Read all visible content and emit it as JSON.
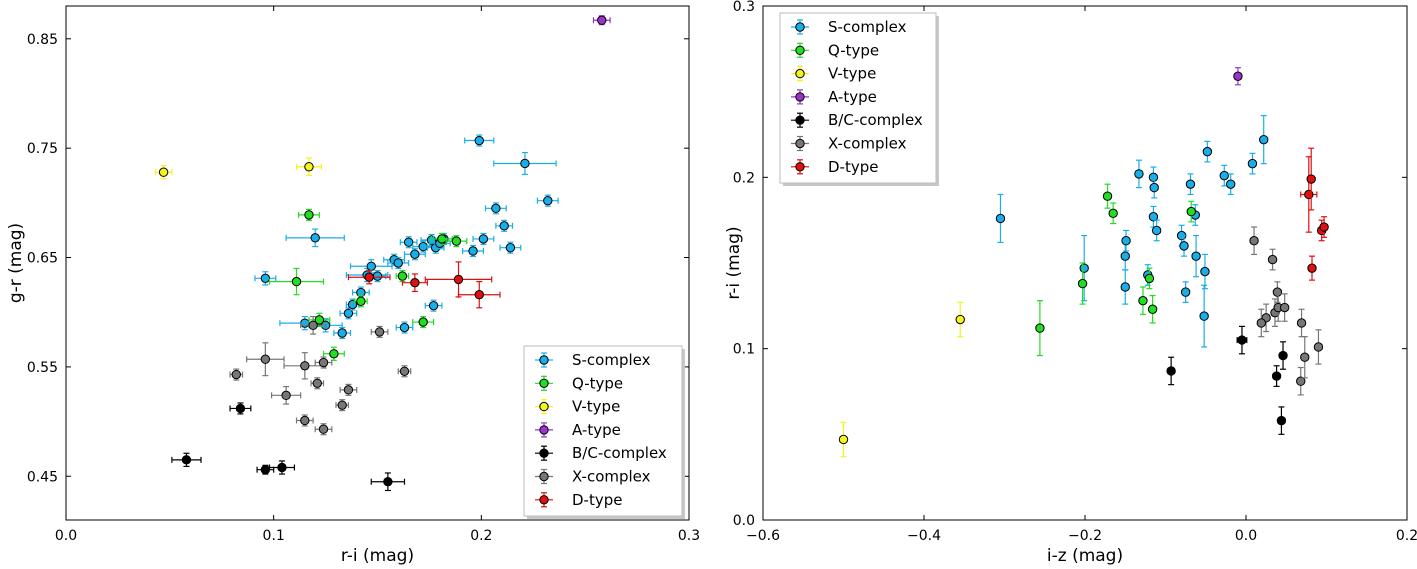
{
  "chart_data": [
    {
      "type": "scatter",
      "xlabel": "r-i (mag)",
      "ylabel": "g-r (mag)",
      "xlim": [
        0.0,
        0.3
      ],
      "ylim": [
        0.41,
        0.88
      ],
      "xticks": [
        "0.0",
        "0.1",
        "0.2",
        "0.3"
      ],
      "xtick_values": [
        0.0,
        0.1,
        0.2,
        0.3
      ],
      "yticks": [
        "0.45",
        "0.55",
        "0.65",
        "0.75",
        "0.85"
      ],
      "ytick_values": [
        0.45,
        0.55,
        0.65,
        0.75,
        0.85
      ],
      "legend_position": "bottom-right",
      "series": [
        {
          "name": "S-complex",
          "color": "#1aaee8",
          "points": [
            [
              0.096,
              0.631,
              0.005,
              0.006
            ],
            [
              0.12,
              0.668,
              0.014,
              0.008
            ],
            [
              0.115,
              0.59,
              0.012,
              0.006
            ],
            [
              0.125,
              0.588,
              0.008,
              0.006
            ],
            [
              0.133,
              0.581,
              0.004,
              0.005
            ],
            [
              0.136,
              0.599,
              0.004,
              0.005
            ],
            [
              0.138,
              0.607,
              0.003,
              0.005
            ],
            [
              0.142,
              0.618,
              0.004,
              0.005
            ],
            [
              0.145,
              0.634,
              0.01,
              0.006
            ],
            [
              0.147,
              0.642,
              0.01,
              0.006
            ],
            [
              0.15,
              0.633,
              0.004,
              0.005
            ],
            [
              0.158,
              0.648,
              0.005,
              0.005
            ],
            [
              0.16,
              0.645,
              0.005,
              0.005
            ],
            [
              0.163,
              0.586,
              0.004,
              0.005
            ],
            [
              0.165,
              0.664,
              0.004,
              0.005
            ],
            [
              0.168,
              0.653,
              0.005,
              0.005
            ],
            [
              0.172,
              0.66,
              0.005,
              0.005
            ],
            [
              0.176,
              0.666,
              0.005,
              0.005
            ],
            [
              0.178,
              0.659,
              0.004,
              0.005
            ],
            [
              0.18,
              0.663,
              0.005,
              0.005
            ],
            [
              0.177,
              0.606,
              0.004,
              0.005
            ],
            [
              0.182,
              0.667,
              0.005,
              0.005
            ],
            [
              0.196,
              0.656,
              0.005,
              0.005
            ],
            [
              0.201,
              0.667,
              0.005,
              0.005
            ],
            [
              0.199,
              0.757,
              0.007,
              0.005
            ],
            [
              0.207,
              0.695,
              0.005,
              0.005
            ],
            [
              0.211,
              0.679,
              0.004,
              0.005
            ],
            [
              0.214,
              0.659,
              0.005,
              0.005
            ],
            [
              0.221,
              0.736,
              0.015,
              0.01
            ],
            [
              0.232,
              0.702,
              0.005,
              0.005
            ]
          ]
        },
        {
          "name": "Q-type",
          "color": "#22dd22",
          "points": [
            [
              0.111,
              0.628,
              0.013,
              0.012
            ],
            [
              0.117,
              0.689,
              0.005,
              0.005
            ],
            [
              0.122,
              0.593,
              0.005,
              0.006
            ],
            [
              0.129,
              0.562,
              0.005,
              0.006
            ],
            [
              0.142,
              0.61,
              0.003,
              0.005
            ],
            [
              0.162,
              0.633,
              0.003,
              0.005
            ],
            [
              0.172,
              0.591,
              0.005,
              0.005
            ],
            [
              0.181,
              0.667,
              0.005,
              0.005
            ],
            [
              0.188,
              0.665,
              0.005,
              0.005
            ]
          ]
        },
        {
          "name": "V-type",
          "color": "#f4f41e",
          "points": [
            [
              0.047,
              0.728,
              0.004,
              0.006
            ],
            [
              0.117,
              0.733,
              0.006,
              0.008
            ]
          ]
        },
        {
          "name": "A-type",
          "color": "#9933cc",
          "points": [
            [
              0.258,
              0.867,
              0.004,
              0.004
            ]
          ]
        },
        {
          "name": "B/C-complex",
          "color": "#000000",
          "points": [
            [
              0.058,
              0.465,
              0.007,
              0.006
            ],
            [
              0.084,
              0.512,
              0.005,
              0.005
            ],
            [
              0.096,
              0.456,
              0.004,
              0.004
            ],
            [
              0.104,
              0.458,
              0.006,
              0.006
            ],
            [
              0.155,
              0.445,
              0.008,
              0.008
            ]
          ]
        },
        {
          "name": "X-complex",
          "color": "#777777",
          "points": [
            [
              0.082,
              0.543,
              0.003,
              0.005
            ],
            [
              0.096,
              0.557,
              0.009,
              0.015
            ],
            [
              0.106,
              0.524,
              0.007,
              0.008
            ],
            [
              0.115,
              0.501,
              0.004,
              0.005
            ],
            [
              0.115,
              0.551,
              0.01,
              0.012
            ],
            [
              0.119,
              0.588,
              0.006,
              0.008
            ],
            [
              0.121,
              0.535,
              0.003,
              0.005
            ],
            [
              0.124,
              0.554,
              0.004,
              0.005
            ],
            [
              0.124,
              0.493,
              0.004,
              0.005
            ],
            [
              0.133,
              0.515,
              0.003,
              0.005
            ],
            [
              0.136,
              0.529,
              0.004,
              0.005
            ],
            [
              0.151,
              0.582,
              0.004,
              0.005
            ],
            [
              0.163,
              0.546,
              0.003,
              0.005
            ]
          ]
        },
        {
          "name": "D-type",
          "color": "#dd1111",
          "points": [
            [
              0.146,
              0.632,
              0.01,
              0.006
            ],
            [
              0.168,
              0.627,
              0.006,
              0.008
            ],
            [
              0.189,
              0.63,
              0.016,
              0.016
            ],
            [
              0.199,
              0.616,
              0.01,
              0.012
            ]
          ]
        }
      ]
    },
    {
      "type": "scatter",
      "xlabel": "i-z (mag)",
      "ylabel": "r-i (mag)",
      "xlim": [
        -0.6,
        0.2
      ],
      "ylim": [
        0.0,
        0.3
      ],
      "xticks": [
        "−0.6",
        "−0.4",
        "−0.2",
        "0.0",
        "0.2"
      ],
      "xtick_values": [
        -0.6,
        -0.4,
        -0.2,
        0.0,
        0.2
      ],
      "yticks": [
        "0.0",
        "0.1",
        "0.2",
        "0.3"
      ],
      "ytick_values": [
        0.0,
        0.1,
        0.2,
        0.3
      ],
      "legend_position": "top-left",
      "series": [
        {
          "name": "S-complex",
          "color": "#1aaee8",
          "points": [
            [
              -0.305,
              0.176,
              0.004,
              0.014
            ],
            [
              -0.201,
              0.147,
              0.004,
              0.019
            ],
            [
              -0.15,
              0.136,
              0.004,
              0.01
            ],
            [
              -0.15,
              0.154,
              0.004,
              0.008
            ],
            [
              -0.149,
              0.163,
              0.004,
              0.006
            ],
            [
              -0.133,
              0.202,
              0.004,
              0.008
            ],
            [
              -0.122,
              0.143,
              0.004,
              0.006
            ],
            [
              -0.115,
              0.2,
              0.004,
              0.006
            ],
            [
              -0.114,
              0.194,
              0.004,
              0.006
            ],
            [
              -0.115,
              0.177,
              0.004,
              0.006
            ],
            [
              -0.111,
              0.169,
              0.004,
              0.006
            ],
            [
              -0.08,
              0.166,
              0.004,
              0.006
            ],
            [
              -0.077,
              0.16,
              0.004,
              0.006
            ],
            [
              -0.075,
              0.133,
              0.004,
              0.006
            ],
            [
              -0.069,
              0.196,
              0.004,
              0.006
            ],
            [
              -0.062,
              0.154,
              0.004,
              0.012
            ],
            [
              -0.063,
              0.178,
              0.004,
              0.006
            ],
            [
              -0.051,
              0.145,
              0.004,
              0.01
            ],
            [
              -0.048,
              0.215,
              0.004,
              0.006
            ],
            [
              -0.052,
              0.119,
              0.004,
              0.018
            ],
            [
              -0.027,
              0.201,
              0.004,
              0.006
            ],
            [
              -0.019,
              0.196,
              0.004,
              0.006
            ],
            [
              0.008,
              0.208,
              0.004,
              0.006
            ],
            [
              0.022,
              0.222,
              0.004,
              0.014
            ]
          ]
        },
        {
          "name": "Q-type",
          "color": "#22dd22",
          "points": [
            [
              -0.256,
              0.112,
              0.004,
              0.016
            ],
            [
              -0.203,
              0.138,
              0.004,
              0.012
            ],
            [
              -0.172,
              0.189,
              0.004,
              0.007
            ],
            [
              -0.165,
              0.179,
              0.004,
              0.006
            ],
            [
              -0.128,
              0.128,
              0.004,
              0.008
            ],
            [
              -0.12,
              0.141,
              0.004,
              0.006
            ],
            [
              -0.116,
              0.123,
              0.004,
              0.008
            ],
            [
              -0.068,
              0.18,
              0.004,
              0.006
            ]
          ]
        },
        {
          "name": "V-type",
          "color": "#f4f41e",
          "points": [
            [
              -0.5,
              0.047,
              0.004,
              0.01
            ],
            [
              -0.355,
              0.117,
              0.004,
              0.01
            ]
          ]
        },
        {
          "name": "A-type",
          "color": "#9933cc",
          "points": [
            [
              -0.01,
              0.259,
              0.004,
              0.005
            ]
          ]
        },
        {
          "name": "B/C-complex",
          "color": "#000000",
          "points": [
            [
              -0.093,
              0.087,
              0.004,
              0.008
            ],
            [
              -0.005,
              0.105,
              0.006,
              0.008
            ],
            [
              0.038,
              0.084,
              0.004,
              0.006
            ],
            [
              0.046,
              0.096,
              0.004,
              0.008
            ],
            [
              0.044,
              0.058,
              0.004,
              0.008
            ]
          ]
        },
        {
          "name": "X-complex",
          "color": "#777777",
          "points": [
            [
              0.01,
              0.163,
              0.004,
              0.008
            ],
            [
              0.025,
              0.118,
              0.004,
              0.008
            ],
            [
              0.019,
              0.115,
              0.004,
              0.008
            ],
            [
              0.033,
              0.152,
              0.004,
              0.006
            ],
            [
              0.036,
              0.121,
              0.004,
              0.008
            ],
            [
              0.039,
              0.133,
              0.004,
              0.006
            ],
            [
              0.04,
              0.124,
              0.004,
              0.008
            ],
            [
              0.048,
              0.124,
              0.004,
              0.008
            ],
            [
              0.069,
              0.115,
              0.004,
              0.008
            ],
            [
              0.068,
              0.081,
              0.004,
              0.008
            ],
            [
              0.073,
              0.095,
              0.004,
              0.012
            ],
            [
              0.09,
              0.101,
              0.004,
              0.01
            ]
          ]
        },
        {
          "name": "D-type",
          "color": "#dd1111",
          "points": [
            [
              0.078,
              0.19,
              0.01,
              0.022
            ],
            [
              0.081,
              0.199,
              0.004,
              0.018
            ],
            [
              0.082,
              0.147,
              0.004,
              0.007
            ],
            [
              0.094,
              0.169,
              0.004,
              0.006
            ],
            [
              0.097,
              0.171,
              0.004,
              0.006
            ]
          ]
        }
      ]
    }
  ]
}
